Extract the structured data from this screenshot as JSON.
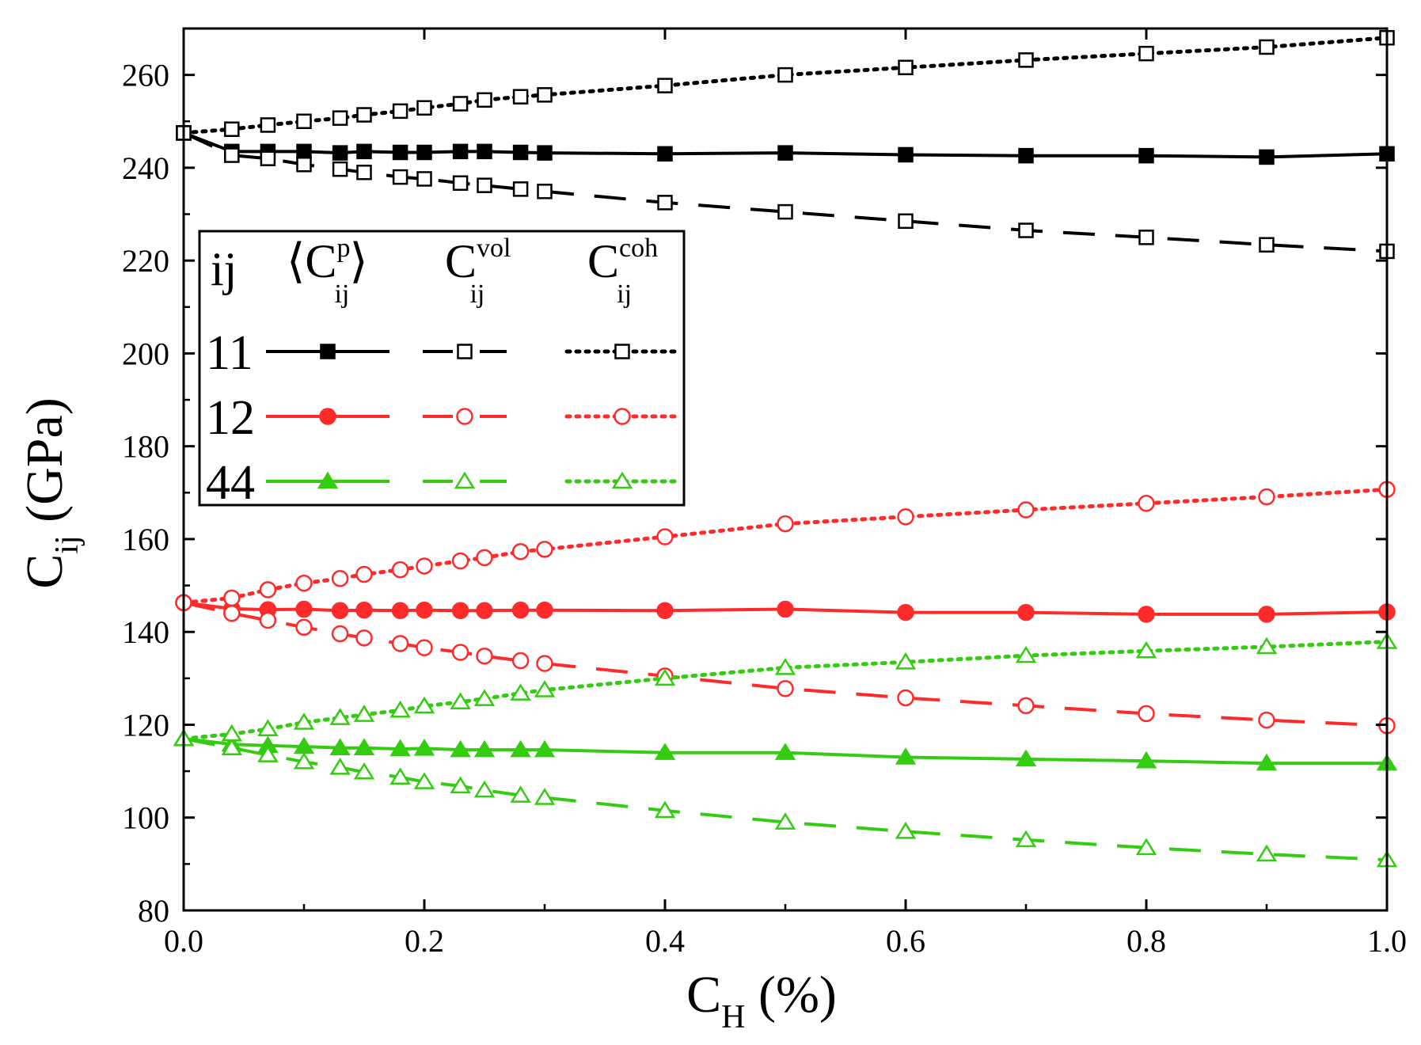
{
  "chart_data": {
    "type": "line",
    "title": "",
    "xlabel": {
      "main": "C",
      "sub": "H",
      "suffix": " (%)"
    },
    "ylabel": {
      "main": "C",
      "sub": "ij",
      "suffix": " (GPa)"
    },
    "xlim": [
      0.0,
      1.0
    ],
    "ylim": [
      80,
      270
    ],
    "x_ticks": [
      0.0,
      0.2,
      0.4,
      0.6,
      0.8,
      1.0
    ],
    "x_tick_labels": [
      "0.0",
      "0.2",
      "0.4",
      "0.6",
      "0.8",
      "1.0"
    ],
    "y_ticks": [
      80,
      100,
      120,
      140,
      160,
      180,
      200,
      220,
      240,
      260
    ],
    "y_tick_labels": [
      "80",
      "100",
      "120",
      "140",
      "160",
      "180",
      "200",
      "220",
      "240",
      "260"
    ],
    "grid": false,
    "colors": {
      "11": "#000000",
      "12": "#ff2a2a",
      "44": "#33cc11"
    },
    "legend": {
      "placement": "middle-left",
      "header_ij": "ij",
      "columns": [
        {
          "main": "⟨C",
          "sup": "p",
          "sub": "ij",
          "close": "⟩",
          "style": "solid"
        },
        {
          "main": "C",
          "sup": "vol",
          "sub": "ij",
          "style": "dashed"
        },
        {
          "main": "C",
          "sup": "coh",
          "sub": "ij",
          "style": "dotted"
        }
      ],
      "rows": [
        "11",
        "12",
        "44"
      ]
    },
    "series": [
      {
        "name": "<C11p>",
        "ij": "11",
        "kind": "solid",
        "marker": "square",
        "filled": true,
        "x": [
          0.0,
          0.04,
          0.07,
          0.1,
          0.13,
          0.15,
          0.18,
          0.2,
          0.23,
          0.25,
          0.28,
          0.3,
          0.4,
          0.5,
          0.6,
          0.7,
          0.8,
          0.9,
          1.0
        ],
        "y": [
          247.5,
          243.5,
          243.5,
          243.5,
          243.2,
          243.5,
          243.3,
          243.3,
          243.5,
          243.5,
          243.3,
          243.2,
          243.0,
          243.2,
          242.8,
          242.6,
          242.6,
          242.3,
          243.0
        ]
      },
      {
        "name": "C11vol",
        "ij": "11",
        "kind": "dashed",
        "marker": "square",
        "filled": false,
        "x": [
          0.0,
          0.04,
          0.07,
          0.1,
          0.13,
          0.15,
          0.18,
          0.2,
          0.23,
          0.25,
          0.28,
          0.3,
          0.4,
          0.5,
          0.6,
          0.7,
          0.8,
          0.9,
          1.0
        ],
        "y": [
          247.5,
          242.7,
          242.0,
          240.7,
          239.7,
          239.0,
          238.0,
          237.6,
          236.7,
          236.2,
          235.4,
          234.9,
          232.5,
          230.5,
          228.5,
          226.5,
          225.0,
          223.4,
          222.0
        ]
      },
      {
        "name": "C11coh",
        "ij": "11",
        "kind": "dotted",
        "marker": "square",
        "filled": false,
        "x": [
          0.0,
          0.04,
          0.07,
          0.1,
          0.13,
          0.15,
          0.18,
          0.2,
          0.23,
          0.25,
          0.28,
          0.3,
          0.4,
          0.5,
          0.6,
          0.7,
          0.8,
          0.9,
          1.0
        ],
        "y": [
          247.5,
          248.3,
          249.2,
          250.0,
          250.7,
          251.4,
          252.2,
          252.9,
          253.8,
          254.6,
          255.3,
          255.7,
          257.7,
          260.0,
          261.6,
          263.2,
          264.6,
          266.0,
          268.0
        ]
      },
      {
        "name": "<C12p>",
        "ij": "12",
        "kind": "solid",
        "marker": "circle",
        "filled": true,
        "x": [
          0.0,
          0.04,
          0.07,
          0.1,
          0.13,
          0.15,
          0.18,
          0.2,
          0.23,
          0.25,
          0.28,
          0.3,
          0.4,
          0.5,
          0.6,
          0.7,
          0.8,
          0.9,
          1.0
        ],
        "y": [
          146.3,
          145.0,
          144.8,
          144.9,
          144.6,
          144.7,
          144.6,
          144.7,
          144.6,
          144.6,
          144.7,
          144.7,
          144.6,
          144.9,
          144.2,
          144.2,
          143.8,
          143.8,
          144.3
        ]
      },
      {
        "name": "C12vol",
        "ij": "12",
        "kind": "dashed",
        "marker": "circle",
        "filled": false,
        "x": [
          0.0,
          0.04,
          0.07,
          0.1,
          0.13,
          0.15,
          0.18,
          0.2,
          0.23,
          0.25,
          0.28,
          0.3,
          0.4,
          0.5,
          0.6,
          0.7,
          0.8,
          0.9,
          1.0
        ],
        "y": [
          146.3,
          144.0,
          142.5,
          141.0,
          139.6,
          138.7,
          137.5,
          136.6,
          135.6,
          134.8,
          133.8,
          133.2,
          130.5,
          127.8,
          125.8,
          124.1,
          122.4,
          121.0,
          119.8
        ]
      },
      {
        "name": "C12coh",
        "ij": "12",
        "kind": "dotted",
        "marker": "circle",
        "filled": false,
        "x": [
          0.0,
          0.04,
          0.07,
          0.1,
          0.13,
          0.15,
          0.18,
          0.2,
          0.23,
          0.25,
          0.28,
          0.3,
          0.4,
          0.5,
          0.6,
          0.7,
          0.8,
          0.9,
          1.0
        ],
        "y": [
          146.3,
          147.3,
          149.1,
          150.5,
          151.5,
          152.4,
          153.4,
          154.2,
          155.3,
          156.0,
          157.3,
          157.8,
          160.5,
          163.3,
          164.8,
          166.3,
          167.7,
          169.1,
          170.7
        ]
      },
      {
        "name": "<C44p>",
        "ij": "44",
        "kind": "solid",
        "marker": "triangle",
        "filled": true,
        "x": [
          0.0,
          0.04,
          0.07,
          0.1,
          0.13,
          0.15,
          0.18,
          0.2,
          0.23,
          0.25,
          0.28,
          0.3,
          0.4,
          0.5,
          0.6,
          0.7,
          0.8,
          0.9,
          1.0
        ],
        "y": [
          117.0,
          115.8,
          115.5,
          115.3,
          115.0,
          115.0,
          114.8,
          114.9,
          114.6,
          114.6,
          114.6,
          114.6,
          114.0,
          114.0,
          113.0,
          112.6,
          112.2,
          111.7,
          111.7
        ]
      },
      {
        "name": "C44vol",
        "ij": "44",
        "kind": "dashed",
        "marker": "triangle",
        "filled": false,
        "x": [
          0.0,
          0.04,
          0.07,
          0.1,
          0.13,
          0.15,
          0.18,
          0.2,
          0.23,
          0.25,
          0.28,
          0.3,
          0.4,
          0.5,
          0.6,
          0.7,
          0.8,
          0.9,
          1.0
        ],
        "y": [
          117.0,
          115.0,
          113.5,
          112.0,
          110.8,
          109.8,
          108.7,
          107.7,
          106.8,
          105.9,
          104.8,
          104.3,
          101.5,
          99.0,
          97.0,
          95.2,
          93.5,
          92.1,
          90.9
        ]
      },
      {
        "name": "C44coh",
        "ij": "44",
        "kind": "dotted",
        "marker": "triangle",
        "filled": false,
        "x": [
          0.0,
          0.04,
          0.07,
          0.1,
          0.13,
          0.15,
          0.18,
          0.2,
          0.23,
          0.25,
          0.28,
          0.3,
          0.4,
          0.5,
          0.6,
          0.7,
          0.8,
          0.9,
          1.0
        ],
        "y": [
          117.0,
          118.0,
          119.1,
          120.5,
          121.5,
          122.2,
          123.1,
          124.0,
          124.9,
          125.6,
          126.8,
          127.5,
          130.0,
          132.3,
          133.5,
          134.9,
          135.9,
          136.8,
          137.9
        ]
      }
    ]
  }
}
